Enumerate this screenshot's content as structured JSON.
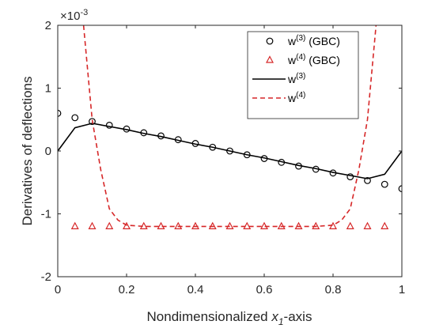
{
  "chart_data": {
    "type": "line",
    "xlabel_main": "Nondimensionalized ",
    "xlabel_var": "x",
    "xlabel_sub": "1",
    "xlabel_tail": "-axis",
    "ylabel": "Derivatives of deflections",
    "y_exponent_base": "×10",
    "y_exponent_power": "-3",
    "xlim": [
      0,
      1
    ],
    "ylim": [
      -2,
      2
    ],
    "xticks": [
      0,
      0.2,
      0.4,
      0.6,
      0.8,
      1
    ],
    "xtick_labels": [
      "0",
      "0.2",
      "0.4",
      "0.6",
      "0.8",
      "1"
    ],
    "yticks": [
      -2,
      -1,
      0,
      1,
      2
    ],
    "ytick_labels": [
      "-2",
      "-1",
      "0",
      "1",
      "2"
    ],
    "grid": false,
    "legend_position": "top-right",
    "series": [
      {
        "name": "w(3) (GBC)",
        "legend_base": "w",
        "legend_sup": "(3)",
        "legend_tail": " (GBC)",
        "style": "circle-markers",
        "color": "#000000",
        "x": [
          0,
          0.05,
          0.1,
          0.15,
          0.2,
          0.25,
          0.3,
          0.35,
          0.4,
          0.45,
          0.5,
          0.55,
          0.6,
          0.65,
          0.7,
          0.75,
          0.8,
          0.85,
          0.9,
          0.95,
          1.0
        ],
        "y": [
          0.6,
          0.53,
          0.47,
          0.41,
          0.35,
          0.29,
          0.24,
          0.18,
          0.12,
          0.06,
          0.0,
          -0.06,
          -0.12,
          -0.18,
          -0.24,
          -0.29,
          -0.35,
          -0.41,
          -0.47,
          -0.53,
          -0.6
        ]
      },
      {
        "name": "w(4) (GBC)",
        "legend_base": "w",
        "legend_sup": "(4)",
        "legend_tail": " (GBC)",
        "style": "triangle-markers",
        "color": "#d62728",
        "x": [
          0.05,
          0.1,
          0.15,
          0.2,
          0.25,
          0.3,
          0.35,
          0.4,
          0.45,
          0.5,
          0.55,
          0.6,
          0.65,
          0.7,
          0.75,
          0.8,
          0.85,
          0.9,
          0.95
        ],
        "y": [
          -1.2,
          -1.2,
          -1.2,
          -1.2,
          -1.2,
          -1.2,
          -1.2,
          -1.2,
          -1.2,
          -1.2,
          -1.2,
          -1.2,
          -1.2,
          -1.2,
          -1.2,
          -1.2,
          -1.2,
          -1.2,
          -1.2
        ]
      },
      {
        "name": "w(3)",
        "legend_base": "w",
        "legend_sup": "(3)",
        "legend_tail": "",
        "style": "solid-line",
        "color": "#000000",
        "x": [
          0,
          0.05,
          0.1,
          0.15,
          0.2,
          0.25,
          0.3,
          0.35,
          0.4,
          0.45,
          0.5,
          0.55,
          0.6,
          0.65,
          0.7,
          0.75,
          0.8,
          0.85,
          0.9,
          0.95,
          1.0
        ],
        "y": [
          0.0,
          0.37,
          0.44,
          0.39,
          0.34,
          0.28,
          0.23,
          0.17,
          0.11,
          0.06,
          0.0,
          -0.06,
          -0.11,
          -0.17,
          -0.23,
          -0.28,
          -0.34,
          -0.39,
          -0.44,
          -0.37,
          0.0
        ]
      },
      {
        "name": "w(4)",
        "legend_base": "w",
        "legend_sup": "(4)",
        "legend_tail": "",
        "style": "dashed-line",
        "color": "#d62728",
        "x": [
          0.075,
          0.1,
          0.125,
          0.15,
          0.175,
          0.2,
          0.25,
          0.3,
          0.35,
          0.4,
          0.45,
          0.5,
          0.55,
          0.6,
          0.65,
          0.7,
          0.75,
          0.8,
          0.825,
          0.85,
          0.875,
          0.9,
          0.925
        ],
        "y": [
          2.0,
          0.5,
          -0.3,
          -0.92,
          -1.1,
          -1.18,
          -1.2,
          -1.2,
          -1.2,
          -1.2,
          -1.2,
          -1.2,
          -1.2,
          -1.2,
          -1.2,
          -1.2,
          -1.2,
          -1.18,
          -1.1,
          -0.92,
          -0.3,
          0.5,
          2.0
        ]
      }
    ]
  }
}
